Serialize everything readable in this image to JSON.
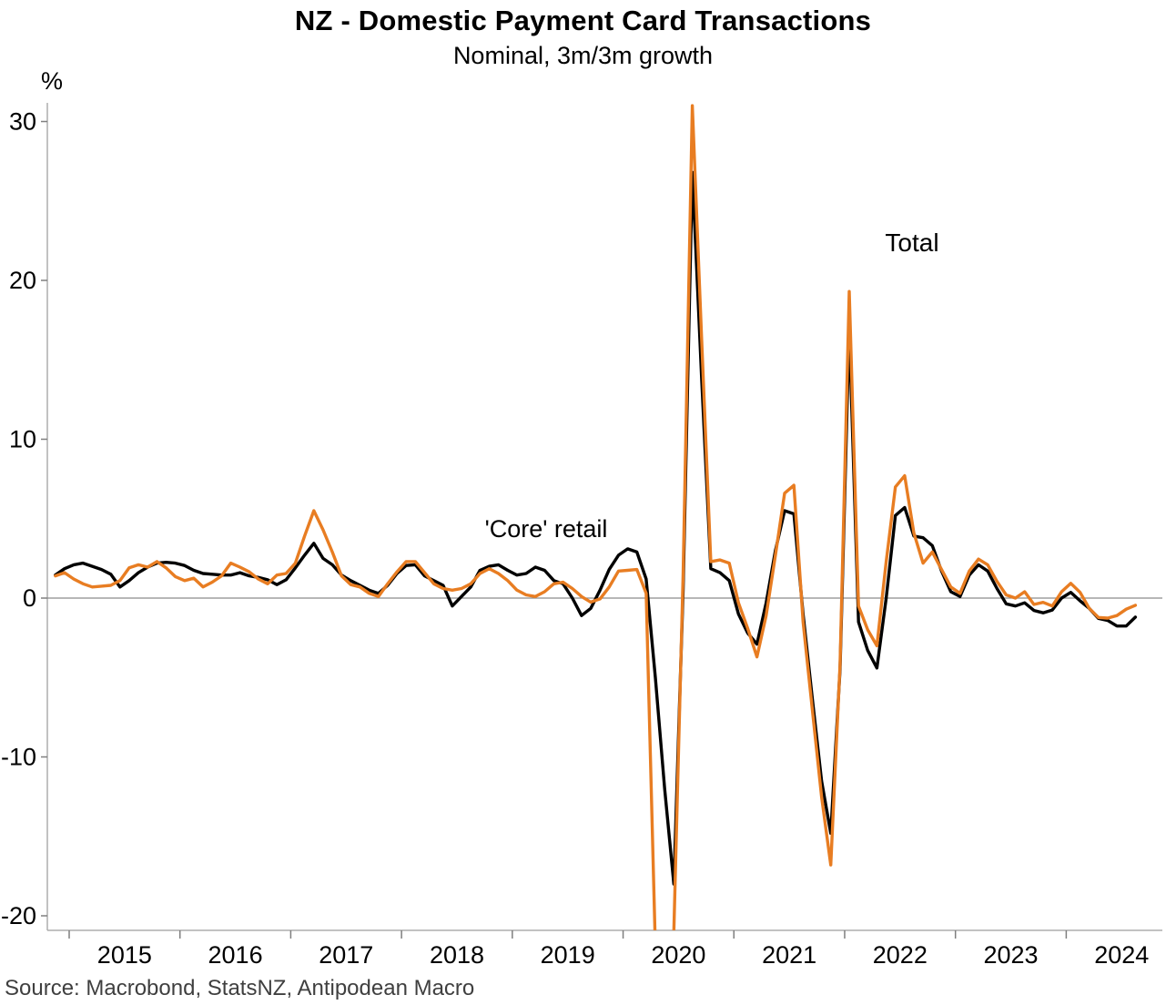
{
  "title": "NZ - Domestic Payment Card Transactions",
  "subtitle": "Nominal, 3m/3m growth",
  "source": "Source: Macrobond, StatsNZ, Antipodean Macro",
  "y_axis": {
    "unit_label": "%",
    "ticks": [
      30,
      20,
      10,
      0,
      -10,
      -20
    ]
  },
  "x_axis": {
    "years": [
      "2015",
      "2016",
      "2017",
      "2018",
      "2019",
      "2020",
      "2021",
      "2022",
      "2023",
      "2024"
    ]
  },
  "annotations": {
    "core_label": "'Core' retail",
    "total_label": "Total"
  },
  "colors": {
    "total": "#E87D22",
    "core": "#000000",
    "axis": "#ADADAD",
    "zero_line": "#8C8C8C",
    "tick": "#7F7F7F"
  },
  "chart_data": {
    "type": "line",
    "x_start": "2014-11",
    "x_step_months": 1,
    "x_end": "2024-08",
    "ylabel": "%",
    "ylim": [
      -20.9,
      31.3
    ],
    "grid": "zero line only",
    "legend": "inline text labels on chart",
    "series": [
      {
        "name": "Total",
        "color": "#E87D22",
        "values": [
          1.4,
          1.6,
          1.2,
          0.9,
          0.7,
          0.75,
          0.8,
          1.1,
          1.9,
          2.1,
          1.95,
          2.3,
          1.9,
          1.35,
          1.1,
          1.25,
          0.7,
          1.0,
          1.4,
          2.2,
          1.95,
          1.65,
          1.2,
          0.9,
          1.45,
          1.55,
          2.2,
          3.9,
          5.5,
          4.3,
          2.9,
          1.4,
          0.85,
          0.7,
          0.3,
          0.1,
          0.9,
          1.65,
          2.3,
          2.3,
          1.6,
          0.9,
          0.6,
          0.5,
          0.6,
          0.9,
          1.55,
          1.85,
          1.55,
          1.1,
          0.5,
          0.2,
          0.1,
          0.4,
          0.9,
          1.0,
          0.6,
          0.1,
          -0.25,
          -0.05,
          0.7,
          1.7,
          1.75,
          1.8,
          0.3,
          -22.0,
          -23.0,
          -21.0,
          1.5,
          31.0,
          16.5,
          2.3,
          2.4,
          2.2,
          -0.3,
          -1.9,
          -3.7,
          -1.1,
          2.7,
          6.6,
          7.1,
          -1.5,
          -7.0,
          -12.5,
          -16.8,
          -4.2,
          19.3,
          -0.5,
          -2.0,
          -3.0,
          2.3,
          7.0,
          7.7,
          4.1,
          2.2,
          2.9,
          1.8,
          0.7,
          0.3,
          1.7,
          2.45,
          2.1,
          1.05,
          0.2,
          0.0,
          0.4,
          -0.4,
          -0.27,
          -0.5,
          0.4,
          0.93,
          0.36,
          -0.65,
          -1.22,
          -1.26,
          -1.1,
          -0.7,
          -0.45
        ]
      },
      {
        "name": "'Core' retail",
        "color": "#000000",
        "values": [
          1.45,
          1.85,
          2.1,
          2.2,
          2.0,
          1.8,
          1.5,
          0.7,
          1.1,
          1.6,
          1.95,
          2.2,
          2.25,
          2.2,
          2.05,
          1.75,
          1.55,
          1.5,
          1.45,
          1.45,
          1.6,
          1.4,
          1.3,
          1.15,
          0.85,
          1.15,
          1.9,
          2.7,
          3.45,
          2.5,
          2.1,
          1.45,
          1.1,
          0.8,
          0.5,
          0.3,
          0.8,
          1.55,
          2.05,
          2.1,
          1.4,
          1.1,
          0.8,
          -0.5,
          0.1,
          0.7,
          1.75,
          2.0,
          2.1,
          1.75,
          1.45,
          1.55,
          1.95,
          1.75,
          1.1,
          0.9,
          0.0,
          -1.1,
          -0.65,
          0.5,
          1.8,
          2.7,
          3.1,
          2.9,
          1.2,
          -5.0,
          -12.0,
          -18.0,
          0.5,
          26.8,
          14.0,
          1.85,
          1.6,
          1.1,
          -1.0,
          -2.2,
          -2.9,
          -0.3,
          3.0,
          5.5,
          5.3,
          -1.0,
          -6.3,
          -11.5,
          -14.8,
          -4.5,
          17.0,
          -1.5,
          -3.3,
          -4.4,
          0.0,
          5.2,
          5.7,
          3.9,
          3.8,
          3.3,
          1.7,
          0.4,
          0.1,
          1.45,
          2.1,
          1.7,
          0.6,
          -0.36,
          -0.5,
          -0.3,
          -0.78,
          -0.93,
          -0.75,
          0.0,
          0.36,
          -0.17,
          -0.65,
          -1.28,
          -1.41,
          -1.76,
          -1.76,
          -1.2
        ]
      }
    ]
  }
}
